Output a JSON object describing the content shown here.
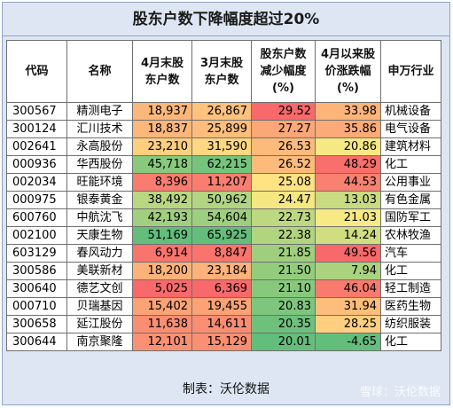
{
  "title": "股东户数下降幅度超过20%",
  "headers": {
    "code": "代码",
    "name": "名称",
    "apr_holders": [
      "4月末股",
      "东户数"
    ],
    "mar_holders": [
      "3月末股",
      "东户数"
    ],
    "decrease": [
      "股东户数",
      "减少幅度",
      "(%)"
    ],
    "change": [
      "4月以来股",
      "价涨跌幅",
      "(%)"
    ],
    "industry": "申万行业"
  },
  "rows": [
    {
      "code": "300567",
      "name": "精测电子",
      "apr": "18,937",
      "mar": "26,867",
      "dec": "29.52",
      "chg": "33.98",
      "ind": "机械设备"
    },
    {
      "code": "300124",
      "name": "汇川技术",
      "apr": "18,837",
      "mar": "25,899",
      "dec": "27.27",
      "chg": "35.86",
      "ind": "电气设备"
    },
    {
      "code": "002641",
      "name": "永高股份",
      "apr": "23,210",
      "mar": "31,590",
      "dec": "26.53",
      "chg": "20.86",
      "ind": "建筑材料"
    },
    {
      "code": "000936",
      "name": "华西股份",
      "apr": "45,718",
      "mar": "62,215",
      "dec": "26.52",
      "chg": "48.29",
      "ind": "化工"
    },
    {
      "code": "002034",
      "name": "旺能环境",
      "apr": "8,396",
      "mar": "11,207",
      "dec": "25.08",
      "chg": "44.53",
      "ind": "公用事业"
    },
    {
      "code": "000975",
      "name": "银泰黄金",
      "apr": "38,492",
      "mar": "50,962",
      "dec": "24.47",
      "chg": "13.03",
      "ind": "有色金属"
    },
    {
      "code": "600760",
      "name": "中航沈飞",
      "apr": "42,193",
      "mar": "54,604",
      "dec": "22.73",
      "chg": "21.03",
      "ind": "国防军工"
    },
    {
      "code": "002100",
      "name": "天康生物",
      "apr": "51,169",
      "mar": "65,925",
      "dec": "22.38",
      "chg": "14.24",
      "ind": "农林牧渔"
    },
    {
      "code": "603129",
      "name": "春风动力",
      "apr": "6,914",
      "mar": "8,847",
      "dec": "21.85",
      "chg": "49.56",
      "ind": "汽车"
    },
    {
      "code": "300586",
      "name": "美联新材",
      "apr": "18,200",
      "mar": "23,184",
      "dec": "21.50",
      "chg": "7.94",
      "ind": "化工"
    },
    {
      "code": "300640",
      "name": "德艺文创",
      "apr": "5,025",
      "mar": "6,369",
      "dec": "21.10",
      "chg": "46.04",
      "ind": "轻工制造"
    },
    {
      "code": "000710",
      "name": "贝瑞基因",
      "apr": "15,402",
      "mar": "19,455",
      "dec": "20.83",
      "chg": "31.94",
      "ind": "医药生物"
    },
    {
      "code": "300658",
      "name": "延江股份",
      "apr": "11,638",
      "mar": "14,611",
      "dec": "20.35",
      "chg": "28.25",
      "ind": "纺织服装"
    },
    {
      "code": "300644",
      "name": "南京聚隆",
      "apr": "12,101",
      "mar": "15,129",
      "dec": "20.01",
      "chg": "-4.65",
      "ind": "化工"
    }
  ],
  "footer": "制表：沃伦数据",
  "watermark": "雪球：沃伦数据",
  "colors": {
    "background": "#dde6f2",
    "scale_low": "#f8696b",
    "scale_mid": "#ffeb84",
    "scale_high": "#63be7b"
  }
}
